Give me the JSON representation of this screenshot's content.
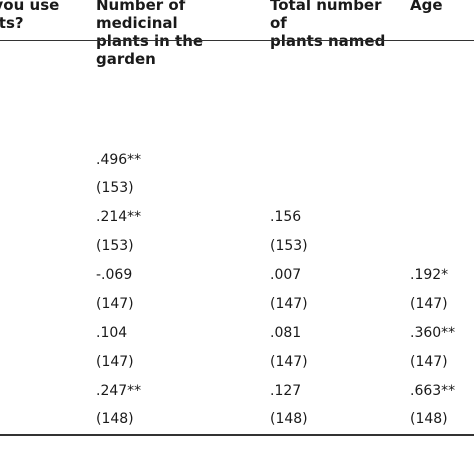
{
  "header": {
    "col0": "o you use\nants?",
    "col1": "Number of medicinal\nplants in the garden",
    "col2": "Total number of\nplants named",
    "col3": "Age"
  },
  "rows": [
    {
      "c1": ".496**",
      "c2": "",
      "c3": ""
    },
    {
      "c1": "(153)",
      "c2": "",
      "c3": ""
    },
    {
      "c1": ".214**",
      "c2": ".156",
      "c3": ""
    },
    {
      "c1": "(153)",
      "c2": "(153)",
      "c3": ""
    },
    {
      "c1": "-.069",
      "c2": ".007",
      "c3": ".192*"
    },
    {
      "c1": "(147)",
      "c2": "(147)",
      "c3": "(147)"
    },
    {
      "c1": ".104",
      "c2": ".081",
      "c3": ".360**"
    },
    {
      "c1": "(147)",
      "c2": "(147)",
      "c3": "(147)"
    },
    {
      "c1": ".247**",
      "c2": ".127",
      "c3": ".663**"
    },
    {
      "c1": "(148)",
      "c2": "(148)",
      "c3": "(148)"
    }
  ]
}
